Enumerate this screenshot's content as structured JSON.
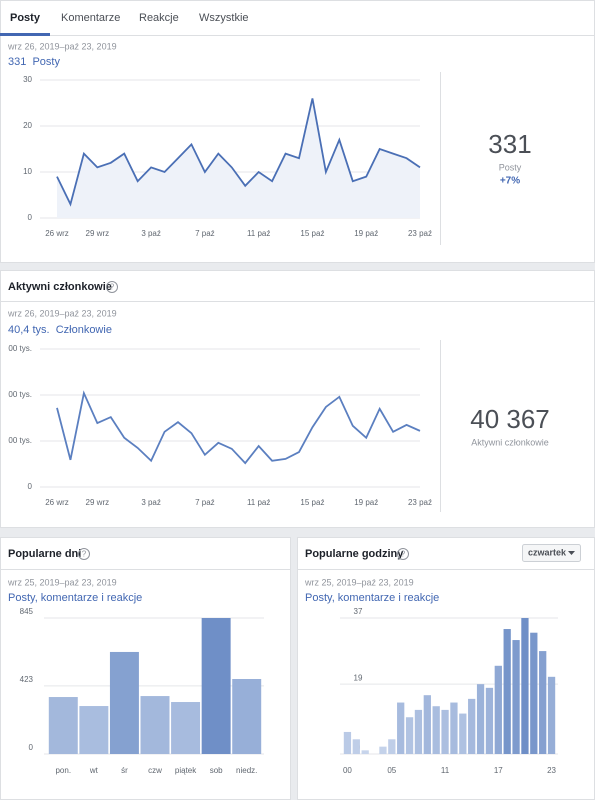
{
  "tabs": [
    "Posty",
    "Komentarze",
    "Reakcje",
    "Wszystkie"
  ],
  "posts": {
    "date_range": "wrz 26, 2019–paź 23, 2019",
    "metric": "331  Posty",
    "big_value": "331",
    "big_label": "Posty",
    "change": "+7%"
  },
  "members": {
    "title": "Aktywni członkowie",
    "date_range": "wrz 26, 2019–paź 23, 2019",
    "metric": "40,4 tys.  Członkowie",
    "big_value": "40 367",
    "big_label": "Aktywni członkowie"
  },
  "days": {
    "title": "Popularne dni",
    "date_range": "wrz 25, 2019–paź 23, 2019",
    "metric": "Posty, komentarze i reakcje"
  },
  "hours": {
    "title": "Popularne godziny",
    "dropdown": "czwartek",
    "date_range": "wrz 25, 2019–paź 23, 2019",
    "metric": "Posty, komentarze i reakcje"
  },
  "chart_data": [
    {
      "type": "line",
      "area": true,
      "color": "#4a6fb5",
      "fill": "#eef2f9",
      "categories": [
        "26 wrz",
        null,
        null,
        "29 wrz",
        null,
        null,
        null,
        "3 paź",
        null,
        null,
        null,
        "7 paź",
        null,
        null,
        null,
        "11 paź",
        null,
        null,
        null,
        "15 paź",
        null,
        null,
        null,
        "19 paź",
        null,
        null,
        null,
        "23 paź"
      ],
      "values": [
        9,
        3,
        14,
        11,
        12,
        14,
        8,
        11,
        10,
        13,
        16,
        10,
        14,
        11,
        7,
        10,
        8,
        14,
        13,
        26,
        10,
        17,
        8,
        9,
        15,
        14,
        13,
        11
      ],
      "ylim": [
        0,
        30
      ],
      "yticks": [
        0,
        10,
        20,
        30
      ],
      "grid": true
    },
    {
      "type": "line",
      "area": false,
      "color": "#5b7fc0",
      "categories": [
        "26 wrz",
        null,
        null,
        "29 wrz",
        null,
        null,
        null,
        "3 paź",
        null,
        null,
        null,
        "7 paź",
        null,
        null,
        null,
        "11 paź",
        null,
        null,
        null,
        "15 paź",
        null,
        null,
        null,
        "19 paź",
        null,
        null,
        null,
        "23 paź"
      ],
      "values": [
        17200,
        5900,
        20400,
        13900,
        15200,
        10700,
        8500,
        5700,
        12000,
        14100,
        11700,
        7000,
        9600,
        8300,
        5200,
        8900,
        5700,
        6100,
        7600,
        13000,
        17400,
        19600,
        13300,
        10700,
        17000,
        12000,
        13500,
        12200
      ],
      "ylim": [
        0,
        30000
      ],
      "yticks": [
        0,
        {
          "value": 10000,
          "label": "00 tys."
        },
        {
          "value": 20000,
          "label": "00 tys."
        },
        {
          "value": 30000,
          "label": "00 tys."
        }
      ],
      "grid": true
    },
    {
      "type": "bar",
      "colors": [
        "#c9d6ec",
        "#6f8fc7"
      ],
      "categories": [
        "pon.",
        "wt",
        "śr",
        "czw",
        "piątek",
        "sob",
        "niedz."
      ],
      "values": [
        354,
        298,
        634,
        360,
        323,
        845,
        466
      ],
      "ylim": [
        0,
        845
      ],
      "yticks": [
        0,
        423,
        845
      ],
      "grid": true
    },
    {
      "type": "bar",
      "colors": [
        "#c9d6ec",
        "#6f8fc7"
      ],
      "categories": [
        "00",
        null,
        null,
        null,
        null,
        "05",
        null,
        null,
        null,
        null,
        null,
        "11",
        null,
        null,
        null,
        null,
        null,
        "17",
        null,
        null,
        null,
        null,
        null,
        "23"
      ],
      "values": [
        6,
        4,
        1,
        0,
        2,
        4,
        14,
        10,
        12,
        16,
        13,
        12,
        14,
        11,
        15,
        19,
        18,
        24,
        34,
        31,
        37,
        33,
        28,
        21
      ],
      "ylim": [
        0,
        37
      ],
      "yticks": [
        0,
        19,
        37
      ],
      "grid": true
    }
  ]
}
